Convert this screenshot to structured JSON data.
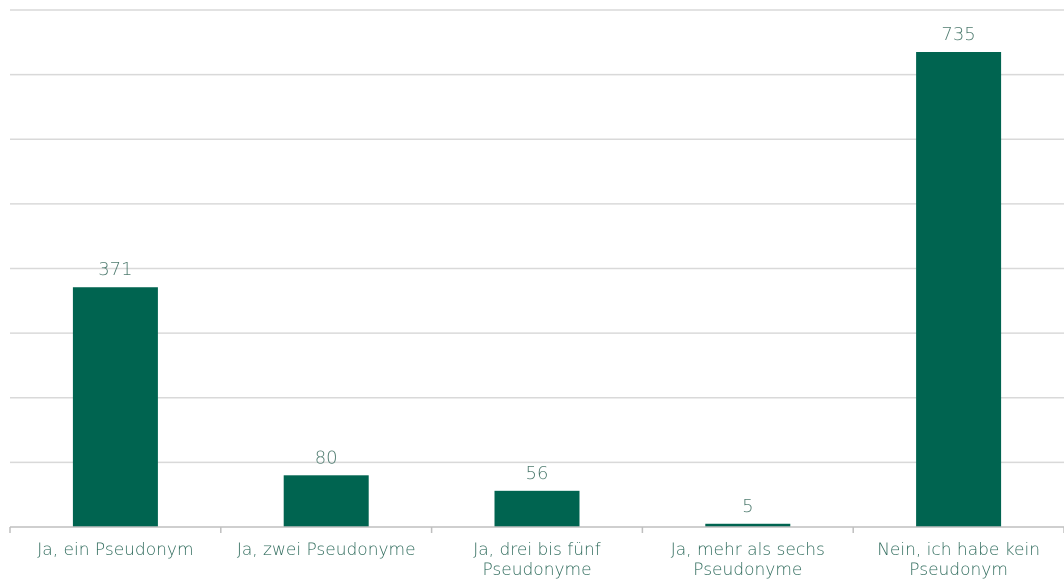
{
  "chart_data": {
    "type": "bar",
    "categories": [
      [
        "Ja, ein Pseudonym"
      ],
      [
        "Ja, zwei Pseudonyme"
      ],
      [
        "Ja, drei bis fünf",
        "Pseudonyme"
      ],
      [
        "Ja, mehr als sechs",
        "Pseudonyme"
      ],
      [
        "Nein, ich habe kein",
        "Pseudonym"
      ]
    ],
    "values": [
      371,
      80,
      56,
      5,
      735
    ],
    "ylim": [
      0,
      800
    ],
    "y_gridline_step": 100,
    "grid": true,
    "bar_color": "#006450",
    "grid_color": "#d9d9d9",
    "label_color": "#2f6b5c"
  }
}
